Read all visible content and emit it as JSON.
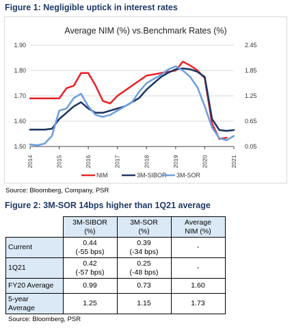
{
  "figure1": {
    "caption": "Figure 1: Negligible uptick in interest rates",
    "source": "Source: Bloomberg, Company, PSR"
  },
  "chart_data": {
    "type": "line",
    "title": "Average NIM (%) vs.Benchmark Rates (%)",
    "x_ticks": [
      "2014",
      "2015",
      "2016",
      "2017",
      "2018",
      "2019",
      "2020",
      "2021"
    ],
    "y_left": {
      "ticks": [
        "1.90",
        "1.80",
        "1.70",
        "1.60",
        "1.50"
      ],
      "range": [
        1.5,
        1.9
      ]
    },
    "y_right": {
      "ticks": [
        "2.45",
        "1.85",
        "1.25",
        "0.65",
        "0.05"
      ],
      "range": [
        0.05,
        2.45
      ]
    },
    "grid": true,
    "legend_position": "bottom",
    "series": [
      {
        "name": "NIM",
        "axis": "left",
        "color": "#e8262a",
        "x": [
          2014.0,
          2014.25,
          2014.5,
          2014.75,
          2015.0,
          2015.25,
          2015.5,
          2015.75,
          2016.0,
          2016.25,
          2016.5,
          2016.75,
          2017.0,
          2017.25,
          2017.5,
          2017.75,
          2018.0,
          2018.25,
          2018.5,
          2018.75,
          2019.0,
          2019.25,
          2019.5,
          2019.75,
          2020.0,
          2020.25,
          2020.5,
          2020.75
        ],
        "values": [
          1.69,
          1.69,
          1.69,
          1.69,
          1.69,
          1.73,
          1.74,
          1.79,
          1.79,
          1.74,
          1.68,
          1.67,
          1.7,
          1.72,
          1.74,
          1.76,
          1.78,
          1.785,
          1.79,
          1.795,
          1.8,
          1.835,
          1.82,
          1.8,
          1.77,
          1.59,
          1.53,
          1.535
        ]
      },
      {
        "name": "3M-SIBOR",
        "axis": "right",
        "color": "#1f3864",
        "x": [
          2014.0,
          2014.25,
          2014.5,
          2014.75,
          2015.0,
          2015.25,
          2015.5,
          2015.75,
          2016.0,
          2016.25,
          2016.5,
          2016.75,
          2017.0,
          2017.25,
          2017.5,
          2017.75,
          2018.0,
          2018.25,
          2018.5,
          2018.75,
          2019.0,
          2019.25,
          2019.5,
          2019.75,
          2020.0,
          2020.25,
          2020.5,
          2020.75,
          2021.0
        ],
        "values": [
          0.45,
          0.45,
          0.45,
          0.47,
          0.7,
          0.85,
          1.0,
          1.1,
          0.95,
          0.85,
          0.85,
          0.9,
          0.95,
          1.0,
          1.1,
          1.2,
          1.4,
          1.55,
          1.7,
          1.8,
          1.88,
          1.9,
          1.88,
          1.82,
          1.7,
          0.7,
          0.44,
          0.42,
          0.44
        ]
      },
      {
        "name": "3M-SOR",
        "axis": "right",
        "color": "#6f9fdf",
        "x": [
          2014.0,
          2014.25,
          2014.5,
          2014.75,
          2015.0,
          2015.25,
          2015.5,
          2015.75,
          2016.0,
          2016.25,
          2016.5,
          2016.75,
          2017.0,
          2017.25,
          2017.5,
          2017.75,
          2018.0,
          2018.25,
          2018.5,
          2018.75,
          2019.0,
          2019.25,
          2019.5,
          2019.75,
          2020.0,
          2020.25,
          2020.5,
          2020.75,
          2021.0
        ],
        "values": [
          0.1,
          0.08,
          0.12,
          0.3,
          0.9,
          0.95,
          1.2,
          1.3,
          1.0,
          0.8,
          0.75,
          0.8,
          0.9,
          1.0,
          1.1,
          1.35,
          1.55,
          1.65,
          1.75,
          1.88,
          1.95,
          1.85,
          1.7,
          1.45,
          1.0,
          0.5,
          0.25,
          0.2,
          0.3
        ]
      }
    ]
  },
  "figure2": {
    "caption": "Figure 2: 3M-SOR 14bps higher than 1Q21 average",
    "source": "Source: Bloomberg, PSR",
    "headers": [
      {
        "l1": "3M-SIBOR",
        "l2": "(%)"
      },
      {
        "l1": "3M-SOR",
        "l2": "(%)"
      },
      {
        "l1": "Average",
        "l2": "NIM (%)"
      }
    ],
    "rows": [
      {
        "label1": "Current",
        "label2": "",
        "cells": [
          {
            "l1": "0.44",
            "l2": "(-55 bps)"
          },
          {
            "l1": "0.39",
            "l2": "(-34 bps)"
          },
          {
            "l1": "-",
            "l2": ""
          }
        ]
      },
      {
        "label1": "1Q21",
        "label2": "",
        "cells": [
          {
            "l1": "0.42",
            "l2": "(-57 bps)"
          },
          {
            "l1": "0.25",
            "l2": "(-48 bps)"
          },
          {
            "l1": "-",
            "l2": ""
          }
        ]
      },
      {
        "label1": "FY20 Average",
        "label2": "",
        "cells": [
          {
            "l1": "0.99",
            "l2": ""
          },
          {
            "l1": "0.73",
            "l2": ""
          },
          {
            "l1": "1.60",
            "l2": ""
          }
        ]
      },
      {
        "label1": "5-year",
        "label2": "Average",
        "cells": [
          {
            "l1": "1.25",
            "l2": ""
          },
          {
            "l1": "1.15",
            "l2": ""
          },
          {
            "l1": "1.73",
            "l2": ""
          }
        ]
      }
    ]
  }
}
